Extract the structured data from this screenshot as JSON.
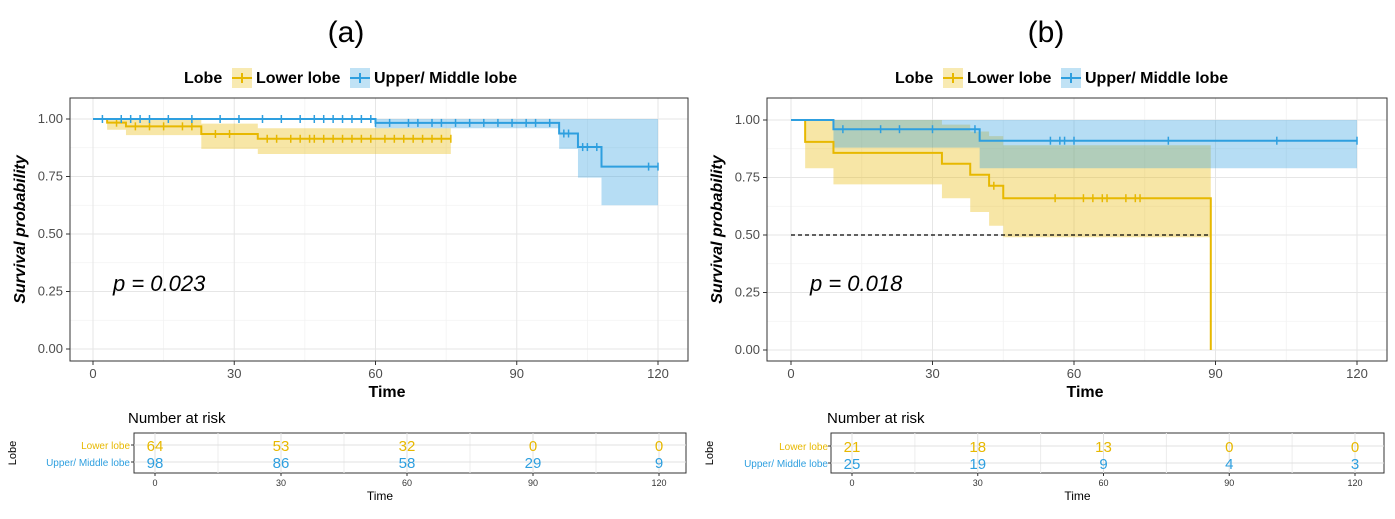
{
  "panels": [
    {
      "label": "(a)",
      "legend": {
        "title": "Lobe",
        "items": [
          "Lower lobe",
          "Upper/ Middle lobe"
        ]
      },
      "pvalue": "p = 0.023",
      "risk_table": {
        "title": "Number at risk",
        "strata_title": "Lobe",
        "x_title": "Time",
        "rows": [
          {
            "label": "Lower lobe",
            "counts": [
              "64",
              "53",
              "32",
              "0",
              "0"
            ]
          },
          {
            "label": "Upper/ Middle lobe",
            "counts": [
              "98",
              "86",
              "58",
              "29",
              "9"
            ]
          }
        ],
        "times": [
          "0",
          "30",
          "60",
          "90",
          "120"
        ]
      }
    },
    {
      "label": "(b)",
      "legend": {
        "title": "Lobe",
        "items": [
          "Lower lobe",
          "Upper/ Middle lobe"
        ]
      },
      "pvalue": "p = 0.018",
      "risk_table": {
        "title": "Number at risk",
        "strata_title": "Lobe",
        "x_title": "Time",
        "rows": [
          {
            "label": "Lower lobe",
            "counts": [
              "21",
              "18",
              "13",
              "0",
              "0"
            ]
          },
          {
            "label": "Upper/ Middle lobe",
            "counts": [
              "25",
              "19",
              "9",
              "4",
              "3"
            ]
          }
        ],
        "times": [
          "0",
          "30",
          "60",
          "90",
          "120"
        ]
      }
    }
  ],
  "colors": {
    "lower": "#E7B800",
    "upper": "#2E9FDF"
  },
  "chart_data": [
    {
      "type": "line",
      "subtype": "kaplan-meier",
      "xlabel": "Time",
      "ylabel": "Survival probability",
      "xlim": [
        0,
        120
      ],
      "ylim": [
        0,
        1
      ],
      "xticks": [
        "0",
        "30",
        "60",
        "90",
        "120"
      ],
      "yticks": [
        "0.00",
        "0.25",
        "0.50",
        "0.75",
        "1.00"
      ],
      "grid": true,
      "legend_position": "top",
      "series": [
        {
          "name": "Lower lobe",
          "steps": [
            [
              0,
              1.0
            ],
            [
              3,
              0.984
            ],
            [
              7,
              0.968
            ],
            [
              23,
              0.935
            ],
            [
              35,
              0.914
            ],
            [
              76,
              0.914
            ]
          ],
          "ci": [
            [
              0,
              1.0,
              1.0
            ],
            [
              3,
              1.0,
              0.953
            ],
            [
              7,
              1.0,
              0.93
            ],
            [
              23,
              0.98,
              0.87
            ],
            [
              35,
              0.96,
              0.848
            ],
            [
              76,
              0.96,
              0.848
            ]
          ],
          "censor": [
            5,
            9,
            12,
            15,
            19,
            21,
            26,
            29,
            37,
            39,
            42,
            44,
            46,
            47,
            49,
            51,
            53,
            55,
            57,
            59,
            62,
            64,
            66,
            68,
            70,
            72,
            74,
            76
          ]
        },
        {
          "name": "Upper/ Middle lobe",
          "steps": [
            [
              0,
              1.0
            ],
            [
              60,
              0.983
            ],
            [
              99,
              0.937
            ],
            [
              103,
              0.878
            ],
            [
              108,
              0.793
            ],
            [
              120,
              0.793
            ]
          ],
          "ci": [
            [
              0,
              1.0,
              1.0
            ],
            [
              60,
              1.0,
              0.96
            ],
            [
              99,
              1.0,
              0.87
            ],
            [
              103,
              1.0,
              0.745
            ],
            [
              108,
              1.0,
              0.625
            ],
            [
              120,
              1.0,
              0.625
            ]
          ],
          "censor": [
            2,
            6,
            8,
            10,
            12,
            16,
            21,
            27,
            31,
            36,
            40,
            44,
            47,
            49,
            51,
            53,
            55,
            57,
            59,
            60,
            63,
            67,
            69,
            72,
            74,
            77,
            80,
            83,
            86,
            89,
            92,
            94,
            97,
            100,
            101,
            104,
            105,
            107,
            118,
            120
          ]
        }
      ]
    },
    {
      "type": "line",
      "subtype": "kaplan-meier",
      "xlabel": "Time",
      "ylabel": "Survival probability",
      "xlim": [
        0,
        120
      ],
      "ylim": [
        0,
        1
      ],
      "xticks": [
        "0",
        "30",
        "60",
        "90",
        "120"
      ],
      "yticks": [
        "0.00",
        "0.25",
        "0.50",
        "0.75",
        "1.00"
      ],
      "grid": true,
      "legend_position": "top",
      "median_line": 89,
      "series": [
        {
          "name": "Lower lobe",
          "steps": [
            [
              0,
              1.0
            ],
            [
              3,
              0.905
            ],
            [
              9,
              0.857
            ],
            [
              32,
              0.81
            ],
            [
              38,
              0.762
            ],
            [
              42,
              0.714
            ],
            [
              45,
              0.66
            ],
            [
              89,
              0.66
            ],
            [
              89,
              0.0
            ]
          ],
          "ci": [
            [
              0,
              1.0,
              1.0
            ],
            [
              3,
              1.0,
              0.79
            ],
            [
              9,
              1.0,
              0.72
            ],
            [
              32,
              0.98,
              0.66
            ],
            [
              38,
              0.95,
              0.6
            ],
            [
              42,
              0.93,
              0.54
            ],
            [
              45,
              0.89,
              0.49
            ],
            [
              89,
              0.89,
              0.49
            ]
          ],
          "censor": [
            43,
            56,
            62,
            64,
            66,
            67,
            71,
            73,
            74
          ]
        },
        {
          "name": "Upper/ Middle lobe",
          "steps": [
            [
              0,
              1.0
            ],
            [
              9,
              0.96
            ],
            [
              40,
              0.91
            ],
            [
              120,
              0.91
            ]
          ],
          "ci": [
            [
              0,
              1.0,
              1.0
            ],
            [
              9,
              1.0,
              0.88
            ],
            [
              40,
              1.0,
              0.79
            ],
            [
              120,
              1.0,
              0.79
            ]
          ],
          "censor": [
            11,
            19,
            23,
            30,
            39,
            55,
            57,
            58,
            60,
            80,
            103,
            120
          ]
        }
      ]
    }
  ]
}
